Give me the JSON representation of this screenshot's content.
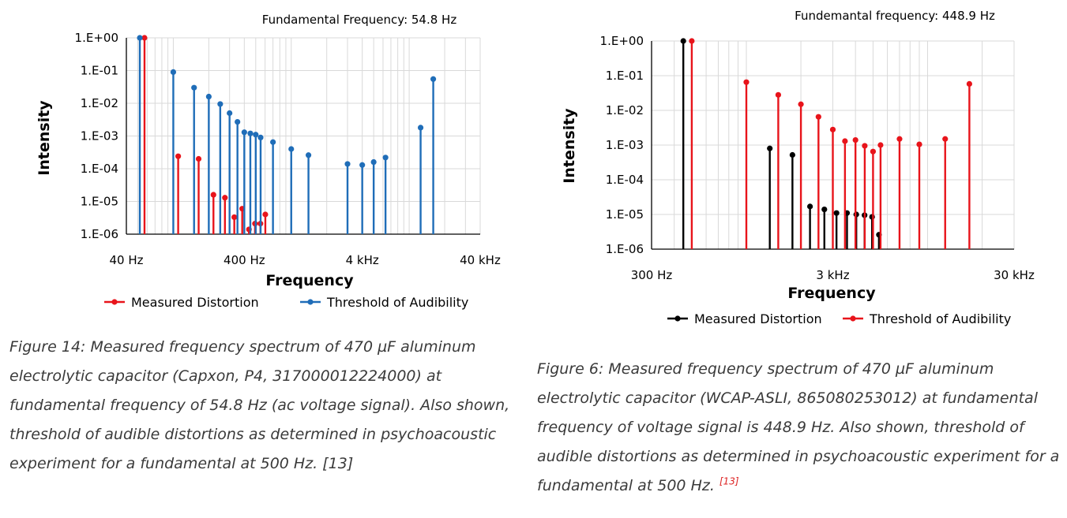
{
  "chart_data": [
    {
      "type": "scatter",
      "title": "Fundamental Frequency: 54.8 Hz",
      "xlabel": "Frequency",
      "ylabel": "Intensity",
      "xscale": "log",
      "yscale": "log",
      "xlim": [
        40,
        40000
      ],
      "ylim": [
        1e-06,
        1
      ],
      "xticks": [
        "40 Hz",
        "400 Hz",
        "4 kHz",
        "40 kHz"
      ],
      "yticks": [
        "1.E+00",
        "1.E-01",
        "1.E-02",
        "1.E-03",
        "1.E-04",
        "1.E-05",
        "1.E-06"
      ],
      "grid": true,
      "legend_position": "bottom",
      "series": [
        {
          "name": "Measured Distortion",
          "color": "#e8141b",
          "points": [
            [
              57,
              1
            ],
            [
              110,
              0.00024
            ],
            [
              164,
              0.0002
            ],
            [
              219,
              1.6e-05
            ],
            [
              274,
              1.3e-05
            ],
            [
              329,
              3.3e-06
            ],
            [
              384,
              6e-06
            ],
            [
              438,
              1.4e-06
            ],
            [
              493,
              2.1e-06
            ],
            [
              548,
              2.1e-06
            ],
            [
              603,
              4e-06
            ]
          ]
        },
        {
          "name": "Threshold of Audibility",
          "color": "#1f6db8",
          "points": [
            [
              52,
              1
            ],
            [
              100,
              0.09
            ],
            [
              150,
              0.03
            ],
            [
              200,
              0.016
            ],
            [
              250,
              0.0095
            ],
            [
              300,
              0.005
            ],
            [
              350,
              0.0027
            ],
            [
              400,
              0.0013
            ],
            [
              450,
              0.0012
            ],
            [
              500,
              0.0011
            ],
            [
              550,
              0.0009
            ],
            [
              700,
              0.00065
            ],
            [
              1000,
              0.0004
            ],
            [
              1400,
              0.00026
            ],
            [
              3000,
              0.00014
            ],
            [
              4000,
              0.00013
            ],
            [
              5000,
              0.00016
            ],
            [
              6300,
              0.00022
            ],
            [
              12500,
              0.0018
            ],
            [
              16000,
              0.055
            ]
          ]
        }
      ]
    },
    {
      "type": "scatter",
      "title": "Fundemantal frequency: 448.9 Hz",
      "xlabel": "Frequency",
      "ylabel": "Intensity",
      "xscale": "log",
      "yscale": "log",
      "xlim": [
        300,
        30000
      ],
      "ylim": [
        1e-06,
        1
      ],
      "xticks": [
        "300 Hz",
        "3 kHz",
        "30 kHz"
      ],
      "yticks": [
        "1.E+00",
        "1.E-01",
        "1.E-02",
        "1.E-03",
        "1.E-04",
        "1.E-05",
        "1.E-06"
      ],
      "grid": true,
      "legend_position": "bottom",
      "series": [
        {
          "name": "Measured Distortion",
          "color": "#000000",
          "points": [
            [
              449,
              1
            ],
            [
              1347,
              0.0008
            ],
            [
              1796,
              0.00052
            ],
            [
              2245,
              1.7e-05
            ],
            [
              2694,
              1.4e-05
            ],
            [
              3143,
              1.1e-05
            ],
            [
              3592,
              1.1e-05
            ],
            [
              4041,
              1e-05
            ],
            [
              4490,
              9.5e-06
            ],
            [
              4939,
              8.5e-06
            ],
            [
              5388,
              2.6e-06
            ]
          ]
        },
        {
          "name": "Threshold of Audibility",
          "color": "#e8141b",
          "points": [
            [
              500,
              1
            ],
            [
              1000,
              0.065
            ],
            [
              1500,
              0.028
            ],
            [
              2000,
              0.015
            ],
            [
              2500,
              0.0065
            ],
            [
              3000,
              0.0028
            ],
            [
              3500,
              0.0013
            ],
            [
              4000,
              0.0014
            ],
            [
              4500,
              0.00095
            ],
            [
              5000,
              0.00065
            ],
            [
              5500,
              0.001
            ],
            [
              7000,
              0.0015
            ],
            [
              9000,
              0.00105
            ],
            [
              12500,
              0.0015
            ],
            [
              17000,
              0.058
            ]
          ]
        }
      ]
    }
  ],
  "captions": {
    "left": [
      "Figure 14: Measured frequency spectrum of 470 µF aluminum",
      "electrolytic capacitor (Capxon, P4, 317000012224000) at",
      "fundamental frequency of 54.8 Hz (ac voltage signal). Also shown,",
      "threshold of audible distortions as determined in psychoacoustic",
      "experiment for a fundamental at 500 Hz. [13]"
    ],
    "right": [
      "Figure 6: Measured frequency spectrum of 470 µF aluminum",
      "electrolytic capacitor (WCAP-ASLI, 865080253012) at fundamental",
      "frequency of voltage signal is 448.9 Hz. Also shown, threshold of",
      "audible distortions as determined in psychoacoustic experiment for a",
      "fundamental at 500 Hz."
    ],
    "right_ref": "[13]"
  }
}
